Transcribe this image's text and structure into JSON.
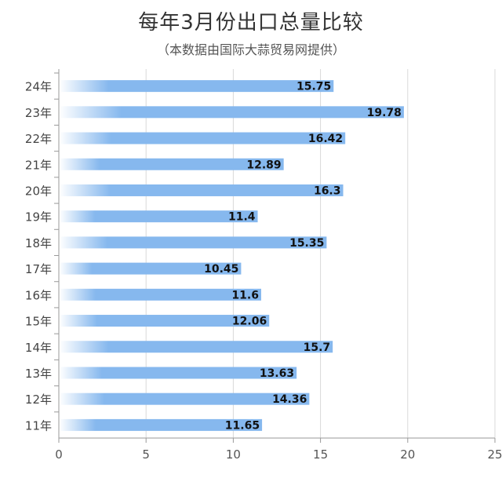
{
  "chart_data": {
    "type": "bar",
    "orientation": "horizontal",
    "title": "每年3月份出口总量比较",
    "subtitle": "（本数据由国际大蒜贸易网提供）",
    "categories": [
      "24年",
      "23年",
      "22年",
      "21年",
      "20年",
      "19年",
      "18年",
      "17年",
      "16年",
      "15年",
      "14年",
      "13年",
      "12年",
      "11年"
    ],
    "values": [
      15.75,
      19.78,
      16.42,
      12.89,
      16.3,
      11.4,
      15.35,
      10.45,
      11.6,
      12.06,
      15.7,
      13.63,
      14.36,
      11.65
    ],
    "value_labels": [
      "15.75",
      "19.78",
      "16.42",
      "12.89",
      "16.3",
      "11.4",
      "15.35",
      "10.45",
      "11.6",
      "12.06",
      "15.7",
      "13.63",
      "14.36",
      "11.65"
    ],
    "xlim": [
      0,
      25
    ],
    "xticks": [
      0,
      5,
      10,
      15,
      20,
      25
    ],
    "xtick_labels": [
      "0",
      "5",
      "10",
      "15",
      "20",
      "25"
    ],
    "xlabel": "",
    "ylabel": "",
    "grid": "vertical",
    "legend": "none",
    "colors": {
      "bar_start": "#ffffff",
      "bar_end": "#86b8ee",
      "grid": "#d9d9d9",
      "axis": "#999999"
    }
  }
}
